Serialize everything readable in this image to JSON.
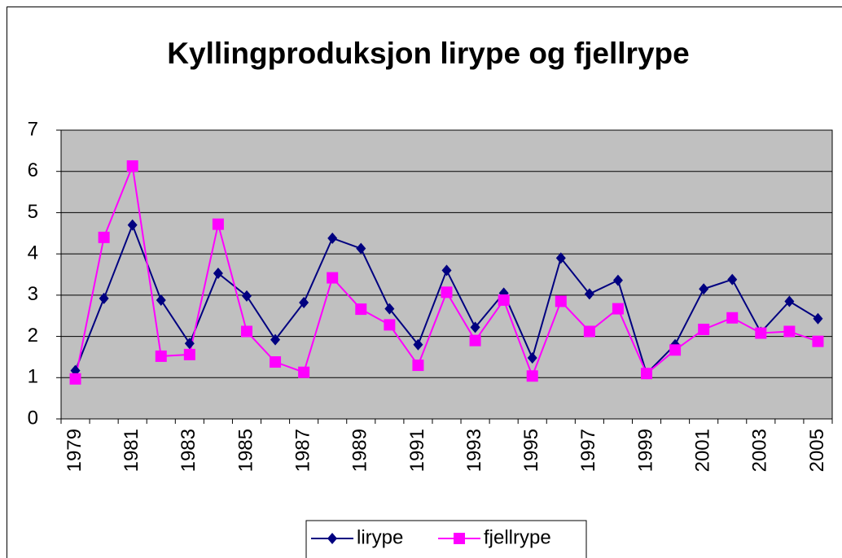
{
  "chart_data": {
    "type": "line",
    "title": "Kyllingproduksjon lirype og fjellrype",
    "categories": [
      "1979",
      null,
      "1981",
      null,
      "1983",
      null,
      "1985",
      null,
      "1987",
      null,
      "1989",
      null,
      "1991",
      null,
      "1993",
      null,
      "1995",
      null,
      "1997",
      null,
      "1999",
      null,
      "2001",
      null,
      "2003",
      null,
      "2005"
    ],
    "series": [
      {
        "name": "lirype",
        "color": "#000080",
        "marker": "diamond",
        "values": [
          1.17,
          2.92,
          4.7,
          2.88,
          1.83,
          3.53,
          2.98,
          1.92,
          2.82,
          4.38,
          4.13,
          2.67,
          1.8,
          3.6,
          2.22,
          3.05,
          1.48,
          3.9,
          3.03,
          3.36,
          1.1,
          1.8,
          3.15,
          3.38,
          2.1,
          2.85,
          2.43
        ]
      },
      {
        "name": "fjellrype",
        "color": "#ff00ff",
        "marker": "square",
        "values": [
          0.97,
          4.4,
          6.13,
          1.52,
          1.56,
          4.72,
          2.12,
          1.38,
          1.13,
          3.42,
          2.66,
          2.28,
          1.3,
          3.07,
          1.9,
          2.88,
          1.04,
          2.85,
          2.12,
          2.67,
          1.1,
          1.67,
          2.17,
          2.45,
          2.08,
          2.12,
          1.88
        ]
      }
    ],
    "ylim": [
      0,
      7
    ],
    "yticks": [
      0,
      1,
      2,
      3,
      4,
      5,
      6,
      7
    ],
    "grid": true,
    "plot_background": "#c0c0c0",
    "legend": "bottom"
  }
}
